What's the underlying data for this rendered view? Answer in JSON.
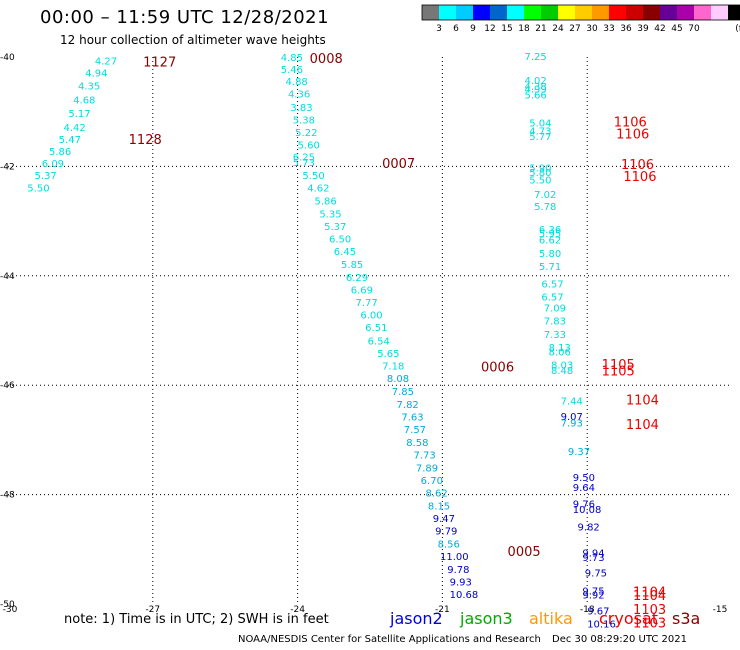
{
  "header": {
    "title": "00:00 – 11:59 UTC 12/28/2021",
    "subtitle": "12 hour collection of altimeter wave heights"
  },
  "footer": {
    "note": "note: 1) Time is in UTC; 2) SWH is in feet",
    "credit": "NOAA/NESDIS Center for Satellite Applications and Research",
    "timestamp": "Dec 30 08:29:20 UTC 2021"
  },
  "legend_satellites": [
    {
      "name": "jason2",
      "color": "#0000dd"
    },
    {
      "name": "jason3",
      "color": "#00aa00"
    },
    {
      "name": "altika",
      "color": "#ff9900"
    },
    {
      "name": "cryosat",
      "color": "#ee0000"
    },
    {
      "name": "s3a",
      "color": "#880000"
    }
  ],
  "colorbar": {
    "colors": [
      "#777777",
      "#00ffff",
      "#00ccff",
      "#0000ff",
      "#0066cc",
      "#00ffff",
      "#00ff00",
      "#00cc00",
      "#ffff00",
      "#ffcc00",
      "#ff9900",
      "#ff0000",
      "#cc0000",
      "#880000",
      "#660099",
      "#aa00aa",
      "#ff66cc",
      "#ffccff",
      "#000000"
    ],
    "labels": [
      "3",
      "6",
      "9",
      "12",
      "15",
      "18",
      "21",
      "24",
      "27",
      "30",
      "33",
      "36",
      "39",
      "42",
      "45",
      "70",
      "(ft)"
    ]
  },
  "chart_data": {
    "type": "scatter",
    "xlim": [
      -30,
      -15
    ],
    "ylim": [
      -50,
      -40
    ],
    "x_ticks": [
      "-30",
      "-27",
      "-24",
      "-21",
      "-18",
      "-15"
    ],
    "y_ticks": [
      "-40",
      "-42",
      "-44",
      "-46",
      "-48",
      "-50"
    ],
    "grid": true,
    "value_colors": {
      "light": "#00dddd",
      "mid": "#00aadd",
      "dark": "#0000cc"
    },
    "points": [
      {
        "lon": -28.2,
        "lat": -40.06,
        "v": "4.27",
        "c": "light"
      },
      {
        "lon": -28.4,
        "lat": -40.28,
        "v": "4.94",
        "c": "light"
      },
      {
        "lon": -28.55,
        "lat": -40.52,
        "v": "4.35",
        "c": "light"
      },
      {
        "lon": -28.65,
        "lat": -40.78,
        "v": "4.68",
        "c": "light"
      },
      {
        "lon": -28.75,
        "lat": -41.02,
        "v": "5.17",
        "c": "light"
      },
      {
        "lon": -28.85,
        "lat": -41.28,
        "v": "4.42",
        "c": "light"
      },
      {
        "lon": -28.95,
        "lat": -41.5,
        "v": "5.47",
        "c": "light"
      },
      {
        "lon": -29.15,
        "lat": -41.72,
        "v": "5.86",
        "c": "light"
      },
      {
        "lon": -29.3,
        "lat": -41.94,
        "v": "6.09",
        "c": "light"
      },
      {
        "lon": -29.45,
        "lat": -42.16,
        "v": "5.37",
        "c": "light"
      },
      {
        "lon": -29.6,
        "lat": -42.39,
        "v": "5.50",
        "c": "light"
      },
      {
        "lon": -24.35,
        "lat": -40.0,
        "v": "4.85",
        "c": "light"
      },
      {
        "lon": -24.35,
        "lat": -40.22,
        "v": "5.46",
        "c": "light"
      },
      {
        "lon": -24.25,
        "lat": -40.44,
        "v": "4.88",
        "c": "light"
      },
      {
        "lon": -24.2,
        "lat": -40.67,
        "v": "4.36",
        "c": "light"
      },
      {
        "lon": -24.15,
        "lat": -40.91,
        "v": "3.83",
        "c": "light"
      },
      {
        "lon": -24.1,
        "lat": -41.14,
        "v": "5.38",
        "c": "light"
      },
      {
        "lon": -24.05,
        "lat": -41.37,
        "v": "5.22",
        "c": "light"
      },
      {
        "lon": -24.0,
        "lat": -41.6,
        "v": "5.60",
        "c": "light"
      },
      {
        "lon": -24.1,
        "lat": -41.82,
        "v": "6.25",
        "c": "light"
      },
      {
        "lon": -24.1,
        "lat": -41.92,
        "v": "5.73",
        "c": "light"
      },
      {
        "lon": -23.9,
        "lat": -42.16,
        "v": "5.50",
        "c": "light"
      },
      {
        "lon": -23.8,
        "lat": -42.39,
        "v": "4.62",
        "c": "light"
      },
      {
        "lon": -23.65,
        "lat": -42.62,
        "v": "5.86",
        "c": "light"
      },
      {
        "lon": -23.55,
        "lat": -42.86,
        "v": "5.35",
        "c": "light"
      },
      {
        "lon": -23.45,
        "lat": -43.09,
        "v": "5.37",
        "c": "light"
      },
      {
        "lon": -23.35,
        "lat": -43.32,
        "v": "6.50",
        "c": "light"
      },
      {
        "lon": -23.25,
        "lat": -43.55,
        "v": "6.45",
        "c": "light"
      },
      {
        "lon": -23.1,
        "lat": -43.78,
        "v": "5.85",
        "c": "light"
      },
      {
        "lon": -23.0,
        "lat": -44.02,
        "v": "6.29",
        "c": "light"
      },
      {
        "lon": -22.9,
        "lat": -44.25,
        "v": "6.69",
        "c": "light"
      },
      {
        "lon": -22.8,
        "lat": -44.48,
        "v": "7.77",
        "c": "light"
      },
      {
        "lon": -22.7,
        "lat": -44.71,
        "v": "6.00",
        "c": "light"
      },
      {
        "lon": -22.6,
        "lat": -44.94,
        "v": "6.51",
        "c": "light"
      },
      {
        "lon": -22.55,
        "lat": -45.18,
        "v": "6.54",
        "c": "light"
      },
      {
        "lon": -22.35,
        "lat": -45.41,
        "v": "5.65",
        "c": "light"
      },
      {
        "lon": -22.25,
        "lat": -45.64,
        "v": "7.18",
        "c": "light"
      },
      {
        "lon": -22.15,
        "lat": -45.87,
        "v": "8.08",
        "c": "mid"
      },
      {
        "lon": -22.05,
        "lat": -46.11,
        "v": "7.85",
        "c": "mid"
      },
      {
        "lon": -21.95,
        "lat": -46.34,
        "v": "7.82",
        "c": "mid"
      },
      {
        "lon": -21.85,
        "lat": -46.57,
        "v": "7.63",
        "c": "mid"
      },
      {
        "lon": -21.8,
        "lat": -46.8,
        "v": "7.57",
        "c": "mid"
      },
      {
        "lon": -21.75,
        "lat": -47.04,
        "v": "8.58",
        "c": "mid"
      },
      {
        "lon": -21.6,
        "lat": -47.27,
        "v": "7.73",
        "c": "mid"
      },
      {
        "lon": -21.55,
        "lat": -47.5,
        "v": "7.89",
        "c": "mid"
      },
      {
        "lon": -21.45,
        "lat": -47.73,
        "v": "6.70",
        "c": "mid"
      },
      {
        "lon": -21.35,
        "lat": -47.96,
        "v": "8.62",
        "c": "mid"
      },
      {
        "lon": -21.3,
        "lat": -48.2,
        "v": "8.15",
        "c": "mid"
      },
      {
        "lon": -21.2,
        "lat": -48.43,
        "v": "9.47",
        "c": "dark"
      },
      {
        "lon": -21.15,
        "lat": -48.66,
        "v": "9.79",
        "c": "dark"
      },
      {
        "lon": -21.1,
        "lat": -48.89,
        "v": "8.56",
        "c": "mid"
      },
      {
        "lon": -21.05,
        "lat": -49.12,
        "v": "11.00",
        "c": "dark"
      },
      {
        "lon": -20.9,
        "lat": -49.36,
        "v": "9.78",
        "c": "dark"
      },
      {
        "lon": -20.85,
        "lat": -49.59,
        "v": "9.93",
        "c": "dark"
      },
      {
        "lon": -20.85,
        "lat": -49.82,
        "v": "10.68",
        "c": "dark"
      },
      {
        "lon": -19.3,
        "lat": -39.98,
        "v": "7.25",
        "c": "light"
      },
      {
        "lon": -19.3,
        "lat": -40.42,
        "v": "4.02",
        "c": "light"
      },
      {
        "lon": -19.3,
        "lat": -40.53,
        "v": "4.38",
        "c": "light"
      },
      {
        "lon": -19.3,
        "lat": -40.58,
        "v": "4.99",
        "c": "light"
      },
      {
        "lon": -19.3,
        "lat": -40.69,
        "v": "5.66",
        "c": "light"
      },
      {
        "lon": -19.2,
        "lat": -41.2,
        "v": "5.04",
        "c": "light"
      },
      {
        "lon": -19.2,
        "lat": -41.34,
        "v": "4.73",
        "c": "light"
      },
      {
        "lon": -19.2,
        "lat": -41.44,
        "v": "5.77",
        "c": "light"
      },
      {
        "lon": -19.2,
        "lat": -42.02,
        "v": "5.90",
        "c": "light"
      },
      {
        "lon": -19.2,
        "lat": -42.1,
        "v": "5.80",
        "c": "light"
      },
      {
        "lon": -19.2,
        "lat": -42.24,
        "v": "5.50",
        "c": "light"
      },
      {
        "lon": -19.1,
        "lat": -42.5,
        "v": "7.02",
        "c": "light"
      },
      {
        "lon": -19.1,
        "lat": -42.72,
        "v": "5.78",
        "c": "light"
      },
      {
        "lon": -19.0,
        "lat": -43.14,
        "v": "6.36",
        "c": "light"
      },
      {
        "lon": -19.0,
        "lat": -43.22,
        "v": "5.95",
        "c": "light"
      },
      {
        "lon": -19.0,
        "lat": -43.34,
        "v": "6.62",
        "c": "light"
      },
      {
        "lon": -19.0,
        "lat": -43.58,
        "v": "5.80",
        "c": "light"
      },
      {
        "lon": -19.0,
        "lat": -43.82,
        "v": "5.71",
        "c": "light"
      },
      {
        "lon": -18.95,
        "lat": -44.14,
        "v": "6.57",
        "c": "light"
      },
      {
        "lon": -18.95,
        "lat": -44.38,
        "v": "6.57",
        "c": "light"
      },
      {
        "lon": -18.9,
        "lat": -44.58,
        "v": "7.09",
        "c": "light"
      },
      {
        "lon": -18.9,
        "lat": -44.82,
        "v": "7.83",
        "c": "light"
      },
      {
        "lon": -18.9,
        "lat": -45.06,
        "v": "7.33",
        "c": "light"
      },
      {
        "lon": -18.8,
        "lat": -45.3,
        "v": "8.13",
        "c": "light"
      },
      {
        "lon": -18.8,
        "lat": -45.38,
        "v": "8.06",
        "c": "light"
      },
      {
        "lon": -18.75,
        "lat": -45.62,
        "v": "8.03",
        "c": "light"
      },
      {
        "lon": -18.75,
        "lat": -45.72,
        "v": "8.48",
        "c": "light"
      },
      {
        "lon": -18.55,
        "lat": -46.28,
        "v": "7.44",
        "c": "light"
      },
      {
        "lon": -18.55,
        "lat": -46.56,
        "v": "9.07",
        "c": "dark"
      },
      {
        "lon": -18.55,
        "lat": -46.68,
        "v": "7.93",
        "c": "mid"
      },
      {
        "lon": -18.4,
        "lat": -47.2,
        "v": "9.37",
        "c": "mid"
      },
      {
        "lon": -18.3,
        "lat": -47.68,
        "v": "9.50",
        "c": "dark"
      },
      {
        "lon": -18.3,
        "lat": -47.86,
        "v": "9.64",
        "c": "dark"
      },
      {
        "lon": -18.3,
        "lat": -48.16,
        "v": "9.76",
        "c": "dark"
      },
      {
        "lon": -18.3,
        "lat": -48.26,
        "v": "10.08",
        "c": "dark"
      },
      {
        "lon": -18.2,
        "lat": -48.58,
        "v": "9.82",
        "c": "dark"
      },
      {
        "lon": -18.1,
        "lat": -49.06,
        "v": "9.94",
        "c": "dark"
      },
      {
        "lon": -18.1,
        "lat": -49.14,
        "v": "9.73",
        "c": "dark"
      },
      {
        "lon": -18.05,
        "lat": -49.42,
        "v": "9.75",
        "c": "dark"
      },
      {
        "lon": -18.1,
        "lat": -49.75,
        "v": "9.75",
        "c": "dark"
      },
      {
        "lon": -18.1,
        "lat": -49.83,
        "v": "9.92",
        "c": "dark"
      },
      {
        "lon": -18.0,
        "lat": -50.12,
        "v": "9.67",
        "c": "dark"
      },
      {
        "lon": -18.0,
        "lat": -50.36,
        "v": "10.16",
        "c": "dark"
      }
    ],
    "time_labels": [
      {
        "lon": -27.2,
        "lat": -40.08,
        "t": "1127",
        "color": "#880000"
      },
      {
        "lon": -27.5,
        "lat": -41.5,
        "t": "1128",
        "color": "#880000"
      },
      {
        "lon": -23.75,
        "lat": -40.02,
        "t": "0008",
        "color": "#880000"
      },
      {
        "lon": -22.25,
        "lat": -41.94,
        "t": "0007",
        "color": "#880000"
      },
      {
        "lon": -20.2,
        "lat": -45.66,
        "t": "0006",
        "color": "#880000"
      },
      {
        "lon": -19.65,
        "lat": -49.03,
        "t": "0005",
        "color": "#880000"
      },
      {
        "lon": -17.45,
        "lat": -41.18,
        "t": "1106",
        "color": "#ee0000"
      },
      {
        "lon": -17.4,
        "lat": -41.4,
        "t": "1106",
        "color": "#ee0000"
      },
      {
        "lon": -17.3,
        "lat": -41.96,
        "t": "1106",
        "color": "#ee0000"
      },
      {
        "lon": -17.25,
        "lat": -42.18,
        "t": "1106",
        "color": "#ee0000"
      },
      {
        "lon": -17.7,
        "lat": -45.61,
        "t": "1105",
        "color": "#ee0000"
      },
      {
        "lon": -17.7,
        "lat": -45.73,
        "t": "1105",
        "color": "#ee0000"
      },
      {
        "lon": -17.2,
        "lat": -46.26,
        "t": "1104",
        "color": "#ee0000"
      },
      {
        "lon": -17.2,
        "lat": -46.71,
        "t": "1104",
        "color": "#ee0000"
      },
      {
        "lon": -17.05,
        "lat": -49.77,
        "t": "1104",
        "color": "#ee0000"
      },
      {
        "lon": -17.05,
        "lat": -49.84,
        "t": "1104",
        "color": "#ee0000"
      },
      {
        "lon": -17.05,
        "lat": -50.09,
        "t": "1103",
        "color": "#ee0000"
      },
      {
        "lon": -17.05,
        "lat": -50.34,
        "t": "1103",
        "color": "#ee0000"
      }
    ]
  }
}
